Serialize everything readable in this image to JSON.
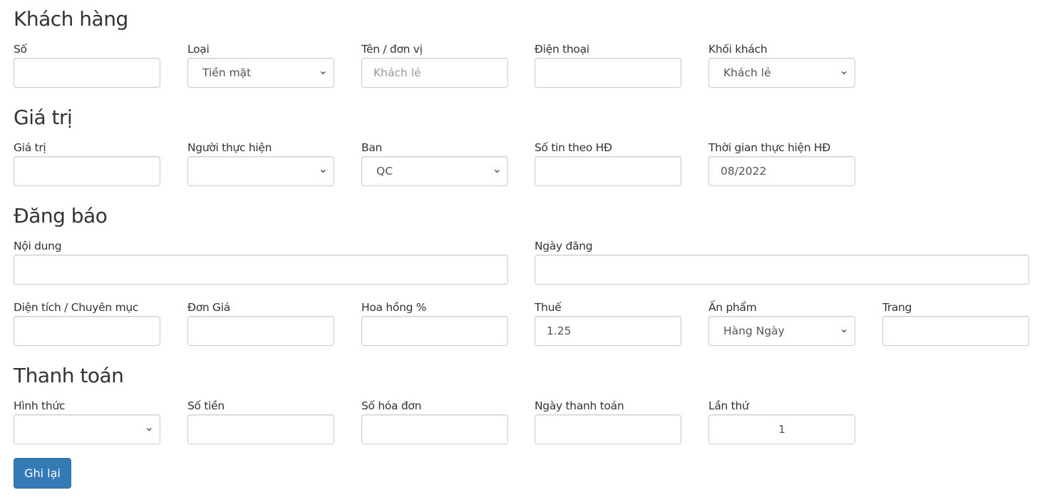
{
  "sections": {
    "customer": {
      "title": "Khách hàng",
      "so": {
        "label": "Số",
        "value": ""
      },
      "loai": {
        "label": "Loại",
        "value": "Tiền mặt"
      },
      "ten": {
        "label": "Tên / đơn vị",
        "placeholder": "Khách lẻ"
      },
      "dienthoai": {
        "label": "Điện thoại",
        "value": ""
      },
      "khoikhach": {
        "label": "Khối khách",
        "value": "Khách lẻ"
      }
    },
    "value": {
      "title": "Giá trị",
      "giatri": {
        "label": "Giá trị",
        "value": ""
      },
      "nguoithuchien": {
        "label": "Người thực hiện",
        "value": ""
      },
      "ban": {
        "label": "Ban",
        "value": "QC"
      },
      "sotin": {
        "label": "Số tin theo HĐ",
        "value": ""
      },
      "thoigian": {
        "label": "Thời gian thực hiện HĐ",
        "value": "08/2022"
      }
    },
    "publish": {
      "title": "Đăng báo",
      "noidung": {
        "label": "Nội dung",
        "value": ""
      },
      "ngaydang": {
        "label": "Ngày đăng",
        "value": ""
      },
      "dientich": {
        "label": "Diện tích / Chuyên mục",
        "value": ""
      },
      "dongia": {
        "label": "Đơn Giá",
        "value": ""
      },
      "hoahong": {
        "label": "Hoa hồng %",
        "value": ""
      },
      "thue": {
        "label": "Thuế",
        "value": "1.25"
      },
      "anpham": {
        "label": "Ấn phẩm",
        "value": "Hàng Ngày"
      },
      "trang": {
        "label": "Trang",
        "value": ""
      }
    },
    "payment": {
      "title": "Thanh toán",
      "hinhthuc": {
        "label": "Hình thức",
        "value": ""
      },
      "sotien": {
        "label": "Số tiền",
        "value": ""
      },
      "sohoadon": {
        "label": "Số hóa đơn",
        "value": ""
      },
      "ngaythanhtoan": {
        "label": "Ngày thanh toán",
        "value": ""
      },
      "lanthu": {
        "label": "Lần thứ",
        "value": "1"
      }
    }
  },
  "submit_label": "Ghi lại",
  "icons": {
    "select": "chevron-down-icon"
  },
  "colors": {
    "primary": "#337ab7"
  }
}
